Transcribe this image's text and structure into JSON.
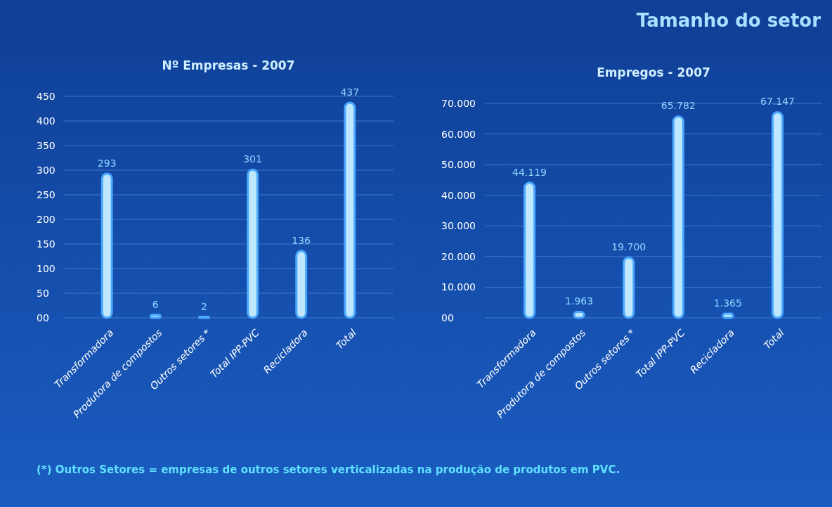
{
  "chart_data": [
    {
      "type": "bar",
      "title": "Nº Empresas - 2007",
      "categories": [
        "Transformadora",
        "Produtora de compostos",
        "Outros setores *",
        "Total IPP-PVC",
        "Recicladora",
        "Total"
      ],
      "values": [
        293,
        6,
        2,
        301,
        136,
        437
      ],
      "value_labels": [
        "293",
        "6",
        "2",
        "301",
        "136",
        "437"
      ],
      "color": "#bfe8ff",
      "ylim": [
        0,
        450
      ],
      "yticks": [
        {
          "value": 0,
          "label": "00"
        },
        50,
        100,
        150,
        200,
        250,
        300,
        350,
        400,
        450
      ],
      "grid": "y",
      "annotations": [
        "Tamanho do setor",
        "(*) Outros Setores = empresas de outros setores verticalizadas na produção de produtos em PVC."
      ]
    },
    {
      "type": "bar",
      "title": "Empregos - 2007",
      "categories": [
        "Transformadora",
        "Produtora de compostos",
        "Outros setores *",
        "Total IPP-PVC",
        "Recicladora",
        "Total"
      ],
      "values": [
        44119,
        1963,
        19700,
        65782,
        1365,
        67147
      ],
      "value_labels": [
        "44.119",
        "1.963",
        "19.700",
        "65.782",
        "1.365",
        "67.147"
      ],
      "color": "#bfe8ff",
      "ylim": [
        0,
        70000
      ],
      "yticks": [
        {
          "value": 0,
          "label": "00"
        },
        {
          "value": 10000,
          "label": "10.000"
        },
        {
          "value": 20000,
          "label": "20.000"
        },
        {
          "value": 30000,
          "label": "30.000"
        },
        {
          "value": 40000,
          "label": "40.000"
        },
        {
          "value": 50000,
          "label": "50.000"
        },
        {
          "value": 60000,
          "label": "60.000"
        },
        {
          "value": 70000,
          "label": "70.000"
        }
      ],
      "grid": "y"
    }
  ]
}
